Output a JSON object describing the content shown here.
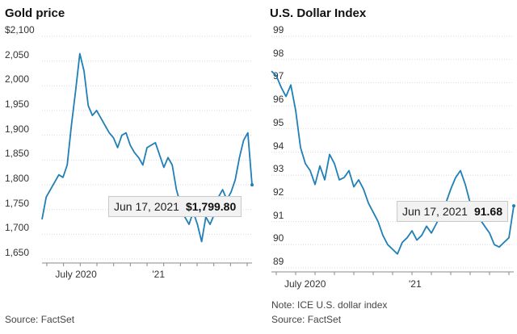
{
  "chart_data": [
    {
      "type": "line",
      "title": "Gold price",
      "yticks": [
        "$2,100",
        "2,050",
        "2,000",
        "1,950",
        "1,900",
        "1,850",
        "1,800",
        "1,750",
        "1,700",
        "1,650"
      ],
      "ytick_values": [
        2100,
        2050,
        2000,
        1950,
        1900,
        1850,
        1800,
        1750,
        1700,
        1650
      ],
      "ylim": [
        1650,
        2100
      ],
      "xticks": [
        "July 2020",
        "'21"
      ],
      "xtick_positions": [
        0.14,
        0.54
      ],
      "series": [
        {
          "name": "Gold price",
          "color": "#1f7fb6",
          "x": [
            0,
            0.02,
            0.04,
            0.06,
            0.08,
            0.1,
            0.12,
            0.14,
            0.16,
            0.18,
            0.2,
            0.22,
            0.24,
            0.26,
            0.28,
            0.3,
            0.32,
            0.34,
            0.36,
            0.38,
            0.4,
            0.42,
            0.44,
            0.46,
            0.48,
            0.5,
            0.52,
            0.54,
            0.56,
            0.58,
            0.6,
            0.62,
            0.64,
            0.66,
            0.68,
            0.7,
            0.72,
            0.74,
            0.76,
            0.78,
            0.8,
            0.82,
            0.84,
            0.86,
            0.88,
            0.9,
            0.92,
            0.94,
            0.96,
            0.98,
            1.0
          ],
          "values": [
            1730,
            1775,
            1790,
            1805,
            1820,
            1815,
            1840,
            1920,
            1990,
            2065,
            2030,
            1960,
            1940,
            1950,
            1935,
            1920,
            1905,
            1895,
            1875,
            1900,
            1905,
            1880,
            1865,
            1855,
            1840,
            1875,
            1880,
            1885,
            1860,
            1835,
            1855,
            1840,
            1790,
            1760,
            1735,
            1720,
            1745,
            1720,
            1685,
            1735,
            1720,
            1740,
            1775,
            1790,
            1770,
            1785,
            1810,
            1855,
            1890,
            1905,
            1799.8
          ]
        }
      ],
      "annotation": {
        "date": "Jun 17, 2021",
        "value": "$1,799.80"
      }
    },
    {
      "type": "line",
      "title": "U.S. Dollar Index",
      "yticks": [
        "99",
        "98",
        "97",
        "96",
        "95",
        "94",
        "93",
        "92",
        "91",
        "90",
        "89"
      ],
      "ytick_values": [
        99,
        98,
        97,
        96,
        95,
        94,
        93,
        92,
        91,
        90,
        89
      ],
      "ylim": [
        89,
        99
      ],
      "xticks": [
        "July 2020",
        "'21"
      ],
      "xtick_positions": [
        0.12,
        0.58
      ],
      "series": [
        {
          "name": "ICE U.S. dollar index",
          "color": "#1f7fb6",
          "x": [
            0,
            0.02,
            0.04,
            0.06,
            0.08,
            0.1,
            0.12,
            0.14,
            0.16,
            0.18,
            0.2,
            0.22,
            0.24,
            0.26,
            0.28,
            0.3,
            0.32,
            0.34,
            0.36,
            0.38,
            0.4,
            0.42,
            0.44,
            0.46,
            0.48,
            0.5,
            0.52,
            0.54,
            0.56,
            0.58,
            0.6,
            0.62,
            0.64,
            0.66,
            0.68,
            0.7,
            0.72,
            0.74,
            0.76,
            0.78,
            0.8,
            0.82,
            0.84,
            0.86,
            0.88,
            0.9,
            0.92,
            0.94,
            0.96,
            0.98,
            1.0
          ],
          "values": [
            97.5,
            97.3,
            96.8,
            96.4,
            96.9,
            95.8,
            94.2,
            93.5,
            93.2,
            92.6,
            93.4,
            92.8,
            93.9,
            93.5,
            92.8,
            92.9,
            93.2,
            92.5,
            92.8,
            92.4,
            91.8,
            91.4,
            91.0,
            90.4,
            90.0,
            89.8,
            89.6,
            90.1,
            90.3,
            90.6,
            90.2,
            90.4,
            90.8,
            90.5,
            90.9,
            91.3,
            91.8,
            92.4,
            92.9,
            93.2,
            92.6,
            91.8,
            91.5,
            91.1,
            90.8,
            90.5,
            90.0,
            89.9,
            90.1,
            90.3,
            91.68
          ]
        }
      ],
      "annotation": {
        "date": "Jun 17, 2021",
        "value": "91.68"
      },
      "note": "Note: ICE U.S. dollar index"
    }
  ],
  "source_left": "Source: FactSet",
  "source_right": "Source: FactSet"
}
